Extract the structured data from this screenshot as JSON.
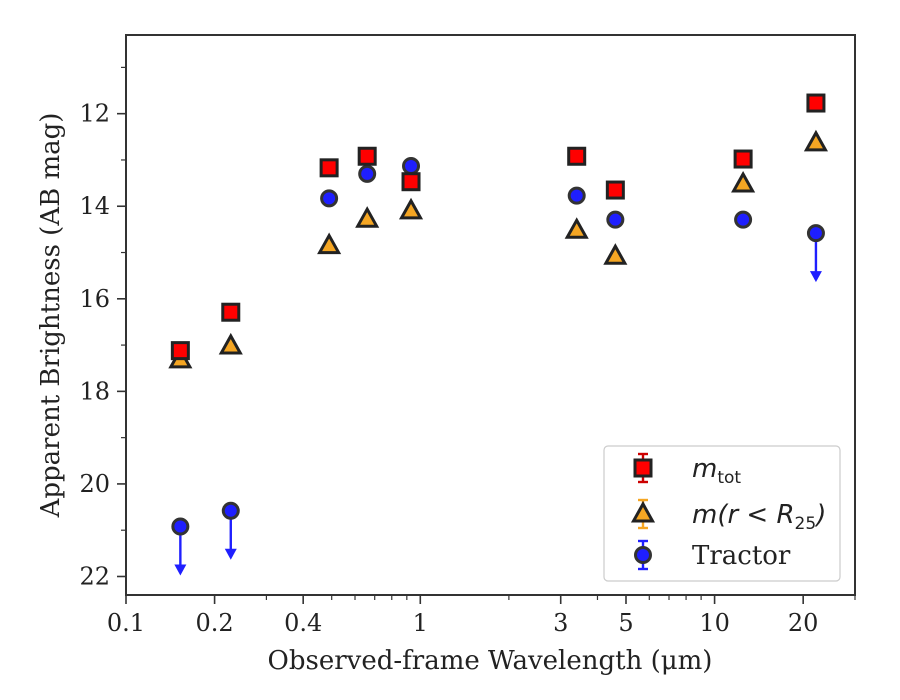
{
  "chart_data": {
    "type": "scatter",
    "xlabel": "Observed-frame Wavelength (μm)",
    "ylabel": "Apparent Brightness (AB mag)",
    "x_scale": "log",
    "xlim": [
      0.1,
      30
    ],
    "ylim": [
      22.4,
      10.3
    ],
    "y_inverted": true,
    "x_ticks": [
      0.1,
      0.2,
      0.4,
      1,
      3,
      5,
      10,
      20
    ],
    "x_tick_labels": [
      "0.1",
      "0.2",
      "0.4",
      "1",
      "3",
      "5",
      "10",
      "20"
    ],
    "y_ticks": [
      12,
      14,
      16,
      18,
      20,
      22
    ],
    "y_tick_labels": [
      "12",
      "14",
      "16",
      "18",
      "20",
      "22"
    ],
    "legend_position": "lower-right",
    "series": [
      {
        "name": "m_tot",
        "legend_main": "m",
        "legend_sub": "tot",
        "marker": "square",
        "color": "#ff0000",
        "edge_color": "#222222",
        "points": [
          {
            "x": 0.153,
            "y": 17.12
          },
          {
            "x": 0.227,
            "y": 16.29
          },
          {
            "x": 0.49,
            "y": 13.17
          },
          {
            "x": 0.66,
            "y": 12.92
          },
          {
            "x": 0.93,
            "y": 13.47
          },
          {
            "x": 3.4,
            "y": 12.92
          },
          {
            "x": 4.6,
            "y": 13.65
          },
          {
            "x": 12.5,
            "y": 12.98
          },
          {
            "x": 22.1,
            "y": 11.77
          }
        ]
      },
      {
        "name": "m(r < R_25)",
        "legend_main": "m(r < R",
        "legend_sub": "25",
        "legend_tail": ")",
        "marker": "triangle",
        "color": "#f5a623",
        "edge_color": "#222222",
        "points": [
          {
            "x": 0.153,
            "y": 17.32
          },
          {
            "x": 0.227,
            "y": 17.02
          },
          {
            "x": 0.49,
            "y": 14.85
          },
          {
            "x": 0.66,
            "y": 14.28
          },
          {
            "x": 0.93,
            "y": 14.1
          },
          {
            "x": 3.4,
            "y": 14.52
          },
          {
            "x": 4.6,
            "y": 15.08
          },
          {
            "x": 12.5,
            "y": 13.52
          },
          {
            "x": 22.1,
            "y": 12.63
          }
        ]
      },
      {
        "name": "Tractor",
        "legend_main": "Tractor",
        "marker": "circle",
        "color": "#1f1fff",
        "edge_color": "#333333",
        "points": [
          {
            "x": 0.153,
            "y": 20.92,
            "upper_limit": true
          },
          {
            "x": 0.227,
            "y": 20.58,
            "upper_limit": true
          },
          {
            "x": 0.49,
            "y": 13.83
          },
          {
            "x": 0.66,
            "y": 13.3
          },
          {
            "x": 0.93,
            "y": 13.13
          },
          {
            "x": 3.4,
            "y": 13.77
          },
          {
            "x": 4.6,
            "y": 14.29
          },
          {
            "x": 12.5,
            "y": 14.29
          },
          {
            "x": 22.1,
            "y": 14.58,
            "upper_limit": true
          }
        ]
      }
    ]
  }
}
